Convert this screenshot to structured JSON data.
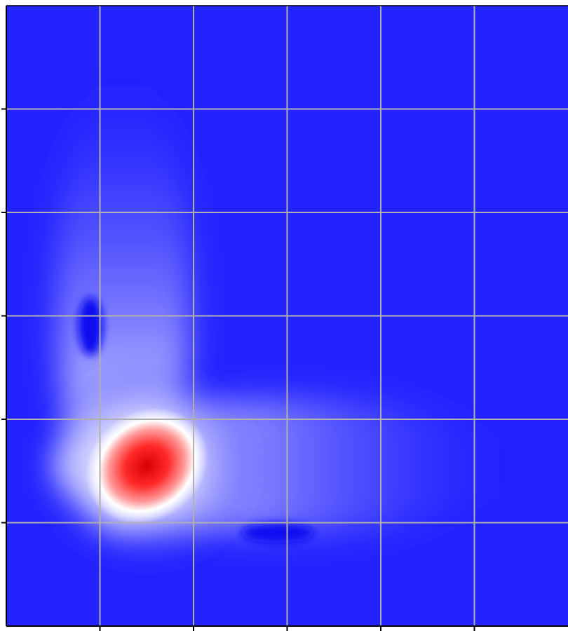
{
  "chart_data": {
    "type": "contour",
    "title": "",
    "xlabel": "",
    "ylabel": "",
    "grid": true,
    "colormap": {
      "low": "#2323ff",
      "mid": "#ffffff",
      "high": "#e00000"
    },
    "x_ticks": [
      1,
      2,
      3,
      4,
      5
    ],
    "y_ticks": [
      1,
      2,
      3,
      4,
      5
    ],
    "xlim": [
      0,
      6
    ],
    "ylim": [
      0,
      6
    ],
    "peak": {
      "x": 1.5,
      "y": 1.55
    },
    "features": [
      {
        "name": "main-peak",
        "x": 1.5,
        "y": 1.55,
        "level": 1.0
      },
      {
        "name": "vertical-ridge",
        "x": 1.5,
        "y": 3.6,
        "level": 0.4
      },
      {
        "name": "horizontal-ridge",
        "x": 3.7,
        "y": 1.45,
        "level": 0.35
      },
      {
        "name": "low-pocket-left",
        "x": 0.9,
        "y": 2.9,
        "level": -0.1
      },
      {
        "name": "low-pocket-bottom",
        "x": 2.9,
        "y": 0.9,
        "level": -0.1
      }
    ]
  }
}
